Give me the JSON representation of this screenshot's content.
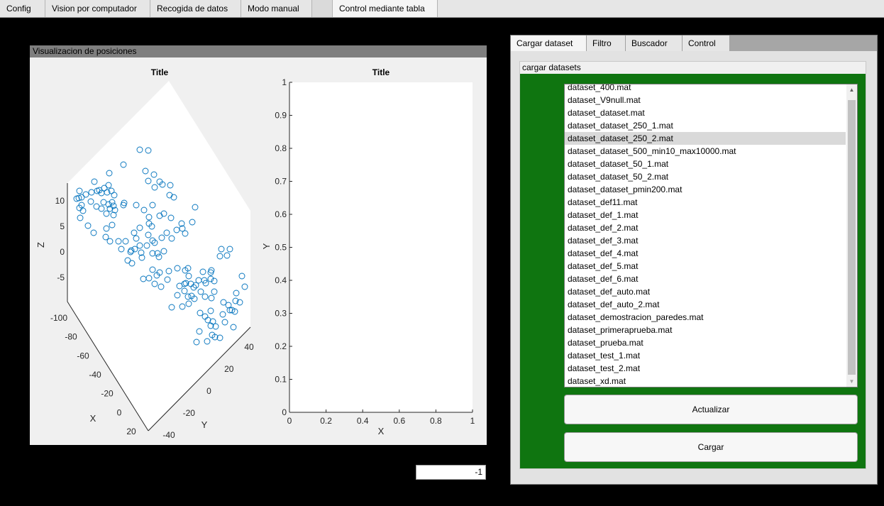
{
  "top_tabs": [
    "Config",
    "Vision por computador",
    "Recogida de datos",
    "Modo manual",
    "Control mediante tabla"
  ],
  "viz": {
    "title": "Visualizacion de posiciones",
    "plot3d": {
      "title": "Title",
      "xlabel": "X",
      "ylabel": "Y",
      "zlabel": "Z",
      "z_ticks": [
        "10",
        "5",
        "0",
        "-5"
      ],
      "x_ticks": [
        "-100",
        "-80",
        "-60",
        "-40",
        "-20",
        "0",
        "20"
      ],
      "y_ticks": [
        "-40",
        "-20",
        "0",
        "20",
        "40"
      ],
      "marker_color": "#0072bd"
    },
    "plot2d": {
      "title": "Title",
      "xlabel": "X",
      "ylabel": "Y",
      "x_ticks": [
        "0",
        "0.2",
        "0.4",
        "0.6",
        "0.8",
        "1"
      ],
      "y_ticks": [
        "0",
        "0.1",
        "0.2",
        "0.3",
        "0.4",
        "0.5",
        "0.6",
        "0.7",
        "0.8",
        "0.9",
        "1"
      ]
    }
  },
  "index_value": "-1",
  "right_tabs": [
    "Cargar dataset",
    "Filtro",
    "Buscador",
    "Control"
  ],
  "datasets_panel": {
    "title": "cargar datasets",
    "bg_color": "#0f7510",
    "files": [
      "dataset_400.mat",
      "dataset_V9null.mat",
      "dataset_dataset.mat",
      "dataset_dataset_250_1.mat",
      "dataset_dataset_250_2.mat",
      "dataset_dataset_500_min10_max10000.mat",
      "dataset_dataset_50_1.mat",
      "dataset_dataset_50_2.mat",
      "dataset_dataset_pmin200.mat",
      "dataset_def11.mat",
      "dataset_def_1.mat",
      "dataset_def_2.mat",
      "dataset_def_3.mat",
      "dataset_def_4.mat",
      "dataset_def_5.mat",
      "dataset_def_6.mat",
      "dataset_def_auto.mat",
      "dataset_def_auto_2.mat",
      "dataset_demostracion_paredes.mat",
      "dataset_primeraprueba.mat",
      "dataset_prueba.mat",
      "dataset_test_1.mat",
      "dataset_test_2.mat",
      "dataset_xd.mat"
    ],
    "selected": "dataset_dataset_250_2.mat",
    "update_label": "Actualizar",
    "load_label": "Cargar"
  }
}
